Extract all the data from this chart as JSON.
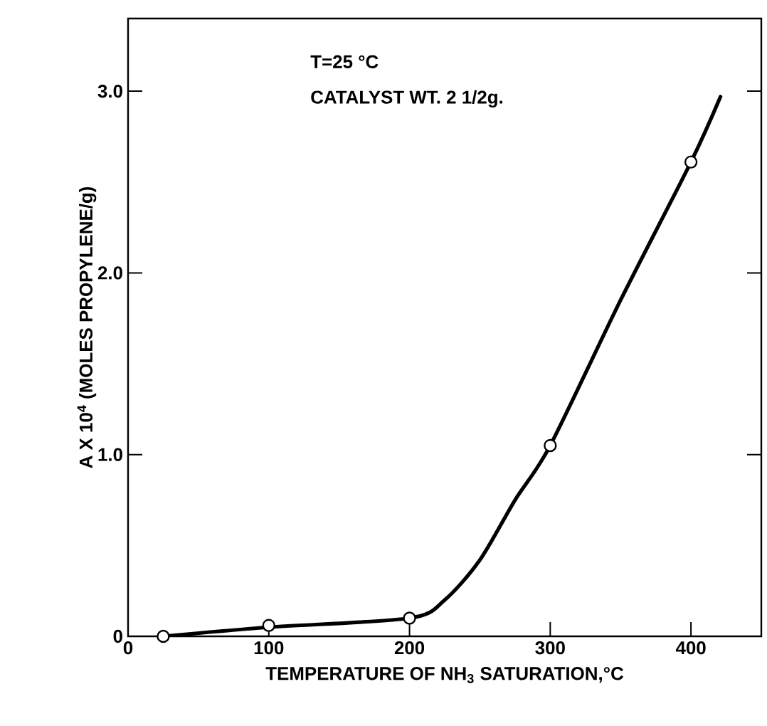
{
  "chart_data": {
    "type": "line",
    "xlabel": "TEMPERATURE OF NH$_{3}$ SATURATION,°C",
    "ylabel": "A X 10$^{4}$ (MOLES PROPYLENE/g)",
    "annotations": [
      "T=25 °C",
      "CATALYST WT. 2 1/2g."
    ],
    "xlim": [
      0,
      450
    ],
    "xticks": [
      0,
      100,
      200,
      300,
      400
    ],
    "ylim": [
      0,
      3.4
    ],
    "yticks": [
      0,
      {
        "value": 1,
        "label": "1.0"
      },
      {
        "value": 2,
        "label": "2.0"
      },
      {
        "value": 3,
        "label": "3.0"
      }
    ],
    "grid": false,
    "line_style": "solid",
    "series": [
      {
        "color": "#000000",
        "x": [
          25,
          100,
          200,
          225,
          250,
          275,
          300,
          350,
          400,
          421
        ],
        "values": [
          0,
          0.05,
          0.1,
          0.2,
          0.42,
          0.75,
          1.05,
          1.85,
          2.61,
          2.97
        ]
      },
      {
        "type": "scatter",
        "color": "#000000",
        "marker": "circle",
        "x": [
          25,
          100,
          200,
          300,
          400
        ],
        "values": [
          0,
          0.06,
          0.1,
          1.05,
          2.61
        ]
      }
    ]
  }
}
